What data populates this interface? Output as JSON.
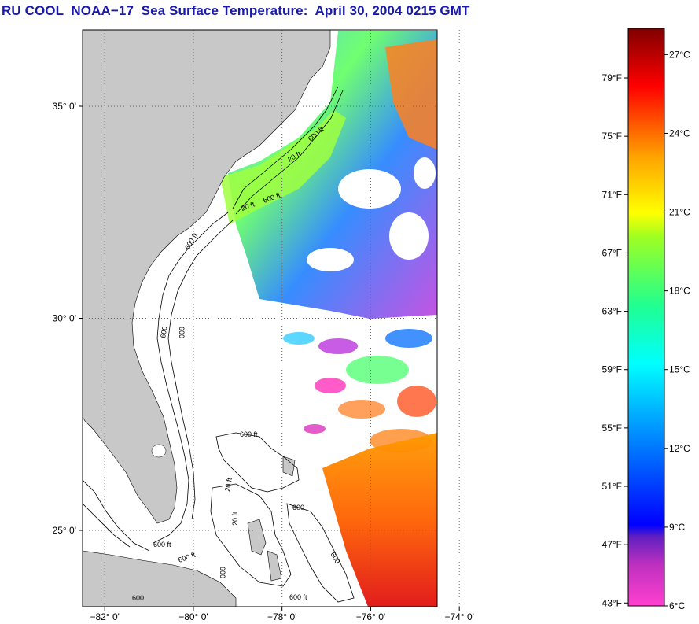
{
  "title": "RU COOL  NOAA−17  Sea Surface Temperature:  April 30, 2004 0215 GMT",
  "map": {
    "lat_labels": [
      "35° 0'",
      "30° 0'",
      "25° 0'"
    ],
    "lon_labels": [
      "−82° 0'",
      "−80° 0'",
      "−78° 0'",
      "−76° 0'",
      "−74° 0'"
    ],
    "lat_values": [
      35,
      30,
      25
    ],
    "lon_values": [
      -82,
      -80,
      -78,
      -76,
      -74
    ],
    "lat_range": [
      23.2,
      36.8
    ],
    "lon_range": [
      -82.5,
      -74.5
    ],
    "land_color": "#c8c8c8",
    "contour_labels": [
      "20 ft",
      "600 ft",
      "20 ft",
      "600 ft",
      "600",
      "600 ft",
      "600",
      "600",
      "600 ft",
      "20 ft",
      "600 ft",
      "20 ft",
      "600",
      "600 ft",
      "600 ft",
      "600",
      "600"
    ]
  },
  "colorbar": {
    "fahrenheit_labels": [
      "79°F",
      "75°F",
      "71°F",
      "67°F",
      "63°F",
      "59°F",
      "55°F",
      "51°F",
      "47°F",
      "43°F"
    ],
    "fahrenheit_values": [
      79,
      75,
      71,
      67,
      63,
      59,
      55,
      51,
      47,
      43
    ],
    "celsius_labels": [
      "27°C",
      "24°C",
      "21°C",
      "18°C",
      "15°C",
      "12°C",
      "9°C",
      "6°C"
    ],
    "celsius_values": [
      27,
      24,
      21,
      18,
      15,
      12,
      9,
      6
    ],
    "range_c": [
      6,
      28
    ],
    "gradient_stops": [
      "#ff40c0",
      "#a020c0",
      "#0000ff",
      "#0080ff",
      "#00ffff",
      "#40ff80",
      "#ffff00",
      "#ff8000",
      "#ff0000",
      "#800000"
    ]
  }
}
